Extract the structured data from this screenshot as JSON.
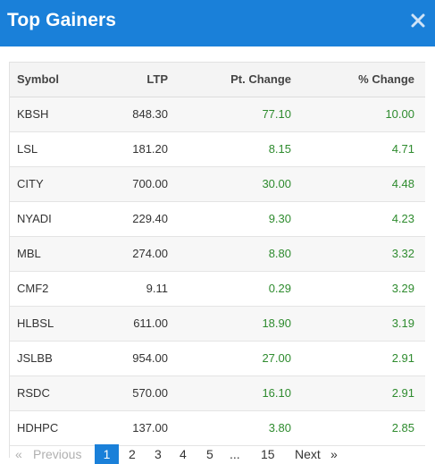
{
  "header": {
    "title": "Top Gainers",
    "bg_color": "#1a80d9",
    "close_icon": "close-icon"
  },
  "table": {
    "columns": [
      "Symbol",
      "LTP",
      "Pt. Change",
      "% Change"
    ],
    "rows": [
      {
        "symbol": "KBSH",
        "ltp": "848.30",
        "pt_change": "77.10",
        "pct_change": "10.00"
      },
      {
        "symbol": "LSL",
        "ltp": "181.20",
        "pt_change": "8.15",
        "pct_change": "4.71"
      },
      {
        "symbol": "CITY",
        "ltp": "700.00",
        "pt_change": "30.00",
        "pct_change": "4.48"
      },
      {
        "symbol": "NYADI",
        "ltp": "229.40",
        "pt_change": "9.30",
        "pct_change": "4.23"
      },
      {
        "symbol": "MBL",
        "ltp": "274.00",
        "pt_change": "8.80",
        "pct_change": "3.32"
      },
      {
        "symbol": "CMF2",
        "ltp": "9.11",
        "pt_change": "0.29",
        "pct_change": "3.29"
      },
      {
        "symbol": "HLBSL",
        "ltp": "611.00",
        "pt_change": "18.90",
        "pct_change": "3.19"
      },
      {
        "symbol": "JSLBB",
        "ltp": "954.00",
        "pt_change": "27.00",
        "pct_change": "2.91"
      },
      {
        "symbol": "RSDC",
        "ltp": "570.00",
        "pt_change": "16.10",
        "pct_change": "2.91"
      },
      {
        "symbol": "HDHPC",
        "ltp": "137.00",
        "pt_change": "3.80",
        "pct_change": "2.85"
      }
    ],
    "positive_color": "#2e8b2e"
  },
  "pagination": {
    "first_arrow": "«",
    "previous": "Previous",
    "pages": [
      "1",
      "2",
      "3",
      "4",
      "5"
    ],
    "ellipsis": "...",
    "last_page": "15",
    "next": "Next",
    "last_arrow": "»",
    "active_page": "1",
    "active_color": "#1a80d9"
  }
}
